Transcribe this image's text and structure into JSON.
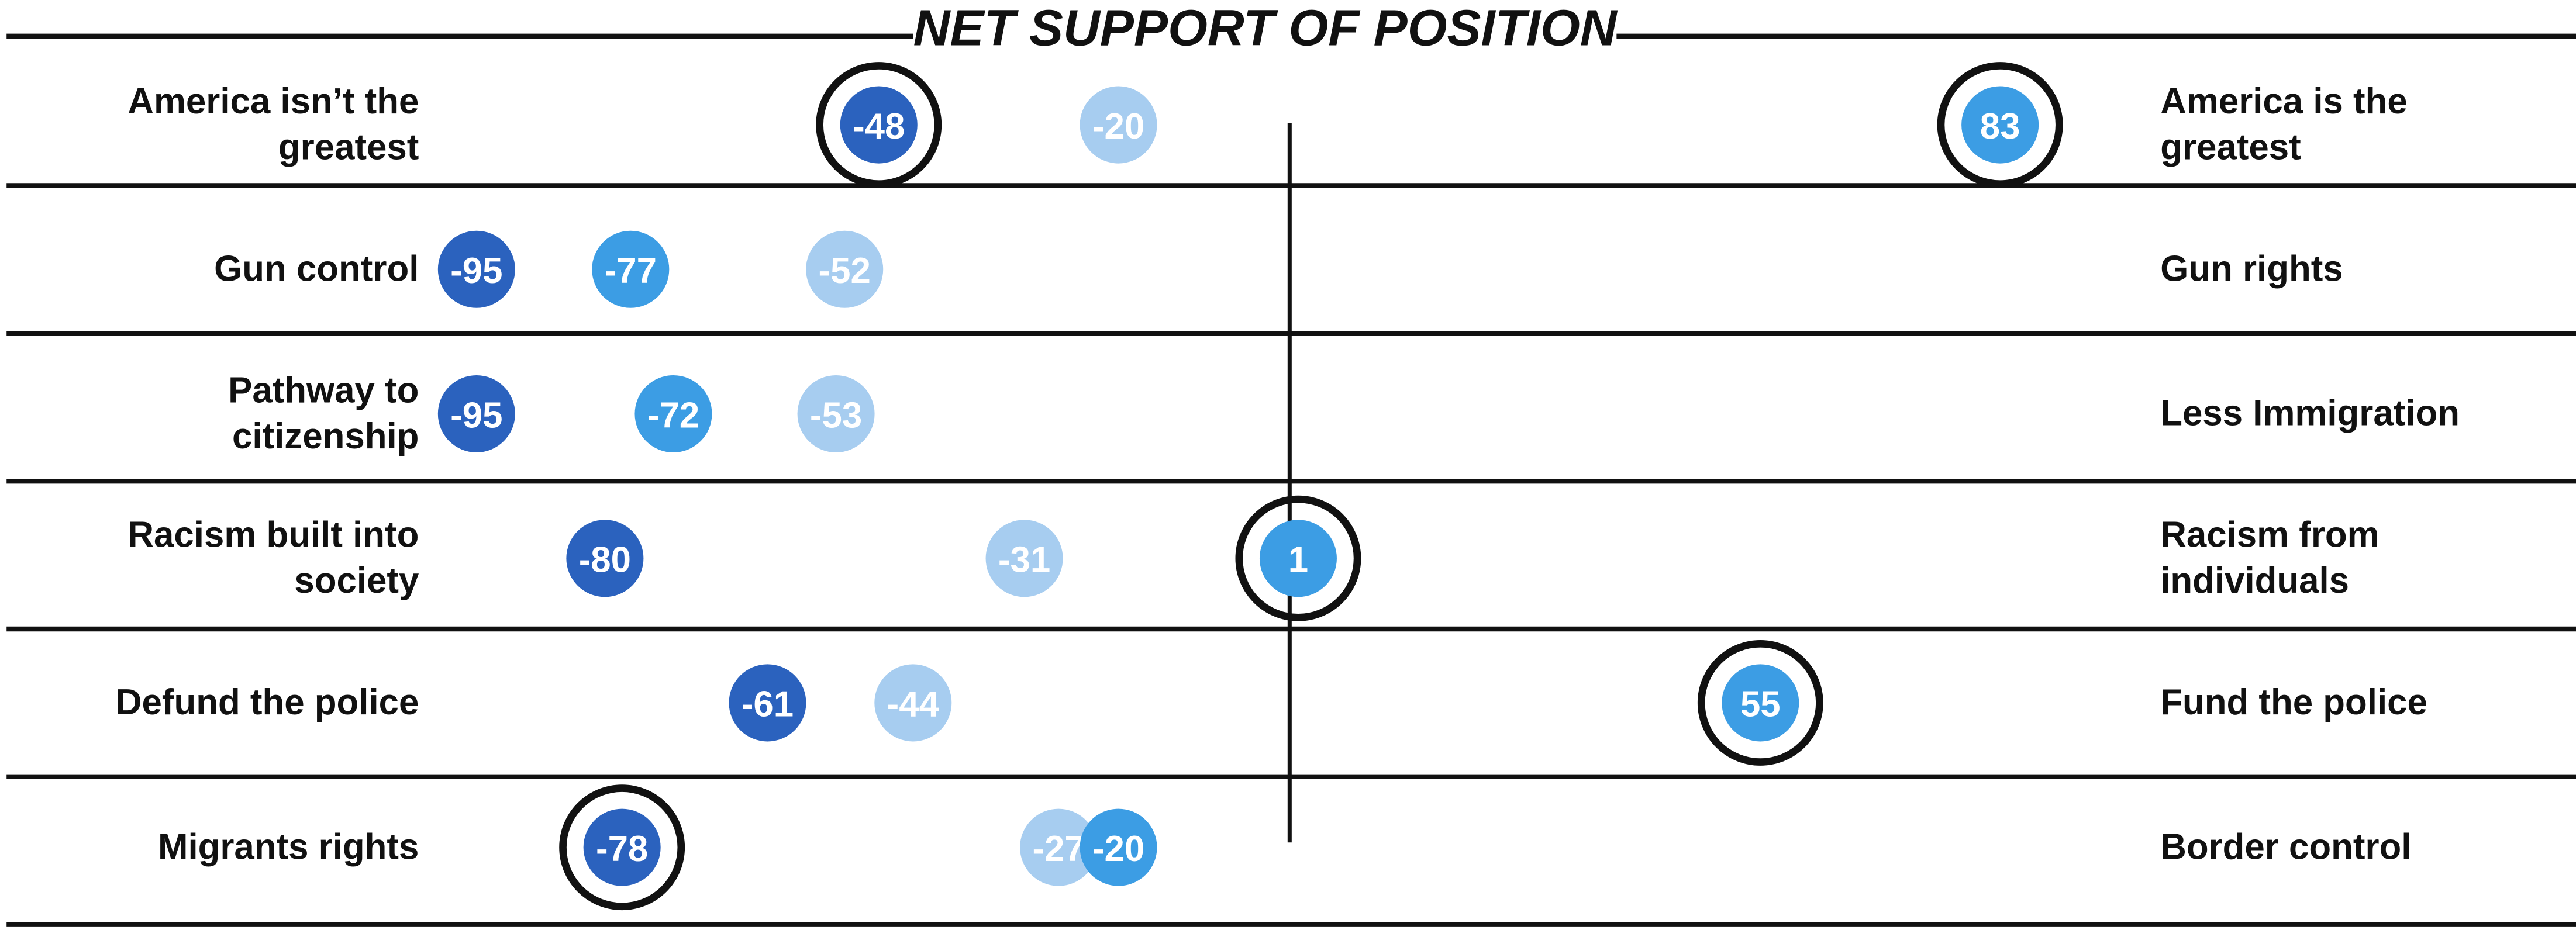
{
  "chart_data": {
    "type": "dot",
    "title": "NET SUPPORT OF POSITION",
    "categories": [
      "America isn’t the greatest",
      "Gun control",
      "Pathway to citizenship",
      "Racism built into society",
      "Defund the police",
      "Migrants rights"
    ],
    "right_labels": [
      "America is the greatest",
      "Gun rights",
      "Less Immigration",
      "Racism from individuals",
      "Fund the police",
      "Border control"
    ],
    "series": [
      {
        "color": "#2b62be",
        "values": [
          -48,
          -95,
          -95,
          -80,
          -61,
          -78
        ]
      },
      {
        "color": "#a7cdf0",
        "values": [
          -20,
          -52,
          -53,
          -31,
          -44,
          -27
        ]
      },
      {
        "color": "#3c9de4",
        "values": [
          83,
          -77,
          -72,
          1,
          55,
          -20
        ]
      }
    ],
    "highlighted": [
      [
        0,
        0
      ],
      [
        0,
        2
      ],
      [
        3,
        2
      ],
      [
        4,
        2
      ],
      [
        5,
        0
      ]
    ],
    "xlim": [
      -100,
      100
    ]
  }
}
